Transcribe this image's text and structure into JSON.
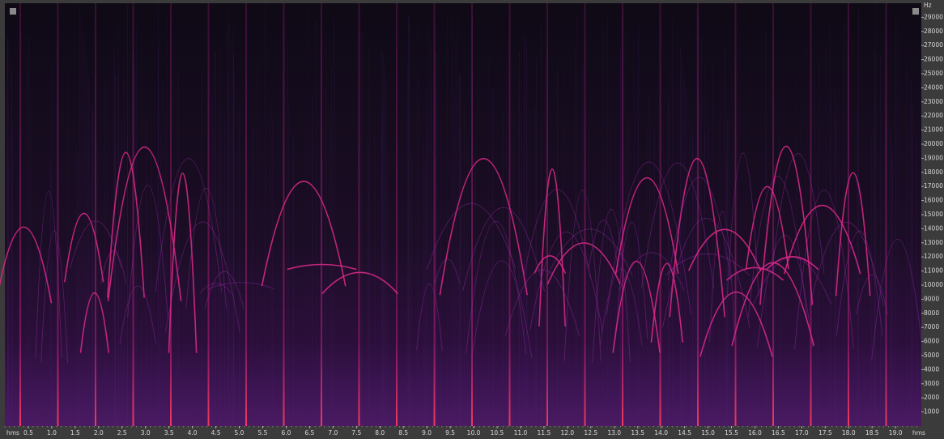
{
  "chart_data": {
    "type": "spectrogram",
    "x_unit": "hms",
    "y_unit": "Hz",
    "xlim": [
      0,
      19.55
    ],
    "ylim": [
      0,
      30000
    ],
    "xticks": [
      0.5,
      {
        "value": 1,
        "label": "1.0"
      },
      1.5,
      {
        "value": 2,
        "label": "2.0"
      },
      2.5,
      {
        "value": 3,
        "label": "3.0"
      },
      3.5,
      {
        "value": 4,
        "label": "4.0"
      },
      4.5,
      {
        "value": 5,
        "label": "5.0"
      },
      5.5,
      {
        "value": 6,
        "label": "6.0"
      },
      6.5,
      {
        "value": 7,
        "label": "7.0"
      },
      7.5,
      {
        "value": 8,
        "label": "8.0"
      },
      8.5,
      {
        "value": 9,
        "label": "9.0"
      },
      9.5,
      {
        "value": 10,
        "label": "10.0"
      },
      10.5,
      {
        "value": 11,
        "label": "11.0"
      },
      11.5,
      {
        "value": 12,
        "label": "12.0"
      },
      12.5,
      {
        "value": 13,
        "label": "13.0"
      },
      13.5,
      {
        "value": 14,
        "label": "14.0"
      },
      14.5,
      {
        "value": 15,
        "label": "15.0"
      },
      15.5,
      {
        "value": 16,
        "label": "16.0"
      },
      16.5,
      {
        "value": 17,
        "label": "17.0"
      },
      17.5,
      {
        "value": 18,
        "label": "18.0"
      },
      18.5,
      {
        "value": 19,
        "label": "19.0"
      }
    ],
    "yticks": [
      1000,
      2000,
      3000,
      4000,
      5000,
      6000,
      7000,
      8000,
      9000,
      10000,
      11000,
      12000,
      13000,
      14000,
      15000,
      16000,
      17000,
      18000,
      19000,
      20000,
      21000,
      22000,
      23000,
      24000,
      25000,
      26000,
      27000,
      28000,
      29000
    ]
  }
}
